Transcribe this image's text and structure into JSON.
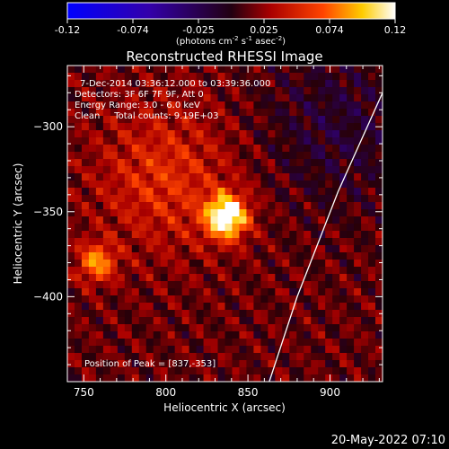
{
  "chart_data": {
    "type": "heatmap",
    "title": "Reconstructed RHESSI Image",
    "colorbar": {
      "min": -0.12,
      "max": 0.12,
      "ticks": [
        "-0.12",
        "-0.074",
        "-0.025",
        "0.025",
        "0.074",
        "0.12"
      ],
      "label_main": "(photons cm",
      "label_sup1": "-2",
      "label_mid1": " s",
      "label_sup2": "-1",
      "label_mid2": " asec",
      "label_sup3": "-2",
      "label_end": ")"
    },
    "xlabel": "Heliocentric X (arcsec)",
    "ylabel": "Heliocentric Y (arcsec)",
    "xlim": [
      740,
      932
    ],
    "ylim": [
      -450,
      -264
    ],
    "xticks": [
      750,
      800,
      850,
      900
    ],
    "yticks": [
      -300,
      -350,
      -400
    ],
    "info_lines": [
      "7-Dec-2014 03:36:12.000 to 03:39:36.000",
      "Detectors: 3F 6F 7F 9F, Att 0",
      "Energy Range: 3.0 - 6.0 keV",
      "Clean     Total counts: 9.19E+03"
    ],
    "peak_text": "Position of Peak = [837,-353]",
    "timestamp": "20-May-2022 07:10",
    "sources": [
      {
        "x": 837,
        "y": -353,
        "intensity": 0.12
      },
      {
        "x": 758,
        "y": -380,
        "intensity": 0.07
      },
      {
        "x": 800,
        "y": -330,
        "intensity": 0.04
      }
    ],
    "limb_curve": [
      [
        932,
        -280
      ],
      [
        905,
        -338
      ],
      [
        880,
        -400
      ],
      [
        863,
        -450
      ]
    ]
  }
}
